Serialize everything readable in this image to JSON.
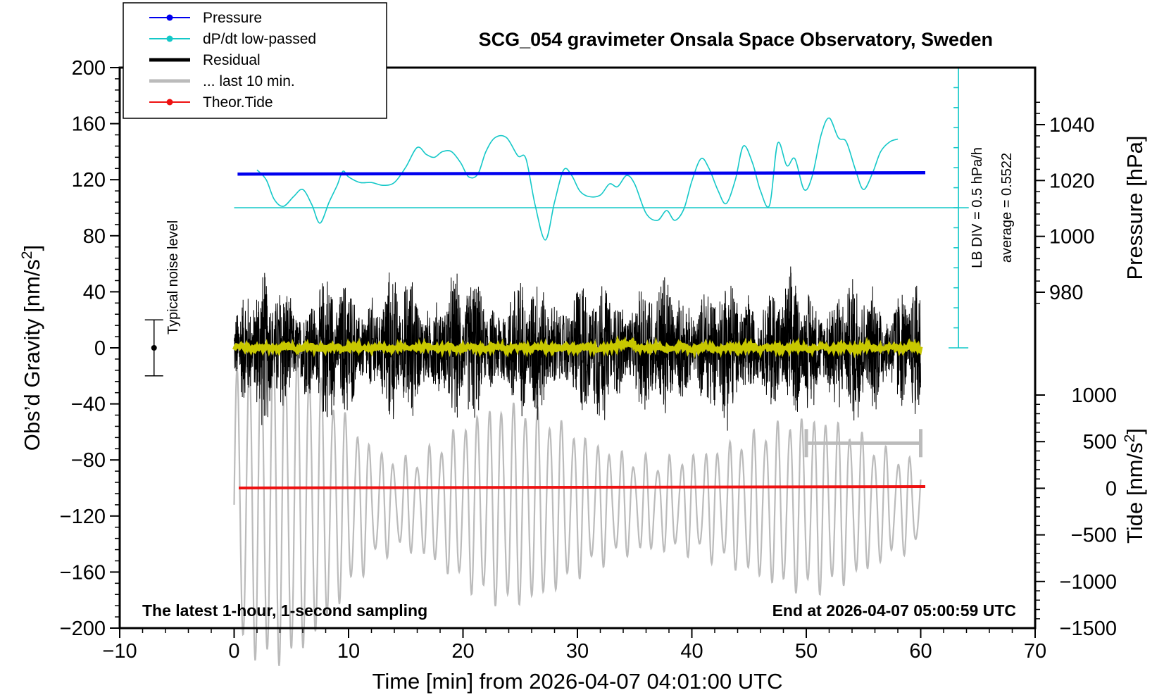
{
  "chart_data": {
    "type": "line",
    "title": "SCG_054 gravimeter Onsala Space Observatory, Sweden",
    "xlabel": "Time [min] from 2026-04-07 04:01:00 UTC",
    "ylabel": "Obs’d Gravity [nm/s",
    "ylabel_sup": "2",
    "ylabel_tail": "]",
    "y2label": "Pressure [hPa]",
    "y3label": "Tide [nm/s",
    "y3label_sup": "2",
    "y3label_tail": "]",
    "xlim": [
      -10,
      70
    ],
    "ylim": [
      -200,
      200
    ],
    "x_ticks": [
      "−10",
      "0",
      "10",
      "20",
      "30",
      "40",
      "50",
      "60",
      "70"
    ],
    "y_ticks": [
      "200",
      "160",
      "120",
      "80",
      "40",
      "0",
      "−40",
      "−80",
      "−120",
      "−160",
      "−200"
    ],
    "pressure_ticks": [
      "1040",
      "1020",
      "1000",
      "980"
    ],
    "pressure_tick_values": [
      1040,
      1020,
      1000,
      980
    ],
    "tide_ticks": [
      "1000",
      "500",
      "0",
      "−500",
      "−1000",
      "−1500"
    ],
    "tide_tick_values": [
      1000,
      500,
      0,
      -500,
      -1000,
      -1500
    ],
    "footer_left": "The latest 1-hour, 1-second sampling",
    "footer_right": "End at 2026-04-07 05:00:59 UTC",
    "noise_label": "Typical noise level",
    "noise_bar": {
      "x": -7,
      "center": 0,
      "low": -20,
      "high": 20
    },
    "lb_div_label": "LB DIV = 0.5 hPa/h",
    "average_label": "average = 0.5522",
    "legend": [
      {
        "label": "Pressure",
        "color": "#0000ee",
        "marker": true,
        "width": 2
      },
      {
        "label": "dP/dt low-passed",
        "color": "#14c8c8",
        "marker": true,
        "width": 2
      },
      {
        "label": "Residual",
        "color": "#000000",
        "marker": false,
        "width": 5
      },
      {
        "label": "... last 10 min.",
        "color": "#bbbbbb",
        "marker": false,
        "width": 5
      },
      {
        "label": "Theor.Tide",
        "color": "#ee1111",
        "marker": true,
        "width": 2
      }
    ],
    "series": [
      {
        "name": "Pressure",
        "color": "#0000ee",
        "x": [
          0,
          60
        ],
        "y": [
          124,
          125
        ]
      },
      {
        "name": "dP/dt low-passed",
        "color": "#14c8c8",
        "baseline_y": 100,
        "x": [
          2,
          2.8,
          3.5,
          4.3,
          5.2,
          6,
          6.8,
          7.5,
          8.3,
          9,
          9.5,
          10,
          11,
          12,
          13,
          14,
          15,
          16,
          16.8,
          17.5,
          18.2,
          19,
          19.8,
          20.5,
          21.3,
          22,
          22.8,
          23.8,
          24.8,
          25.5,
          26.3,
          27.2,
          28,
          28.8,
          29.5,
          30.2,
          31,
          32,
          32.8,
          33.5,
          34.3,
          35,
          36,
          37,
          37.8,
          38.5,
          39.3,
          40,
          40.8,
          41.5,
          42.3,
          43,
          43.8,
          44.5,
          45.3,
          46,
          46.8,
          47.5,
          48.3,
          49,
          49.8,
          50.5,
          51.3,
          52,
          52.8,
          53.5,
          54.3,
          55,
          55.8,
          56.5,
          57.3,
          58
        ],
        "y": [
          127,
          120,
          106,
          101,
          108,
          113,
          102,
          89,
          104,
          116,
          126,
          122,
          118,
          118,
          116,
          118,
          129,
          143,
          138,
          136,
          140,
          140,
          132,
          122,
          124,
          140,
          150,
          150,
          137,
          135,
          102,
          77,
          104,
          127,
          123,
          112,
          108,
          109,
          117,
          115,
          123,
          117,
          96,
          91,
          98,
          91,
          99,
          119,
          135,
          128,
          112,
          103,
          120,
          144,
          132,
          112,
          102,
          146,
          130,
          135,
          113,
          122,
          152,
          164,
          150,
          147,
          127,
          113,
          125,
          140,
          147,
          149
        ]
      },
      {
        "name": "Residual",
        "color": "#000000",
        "x": [
          0,
          60
        ],
        "envelope_nm_s2": [
          -96,
          97
        ],
        "mean": 0
      },
      {
        "name": "... last 10 min.",
        "color": "#bbbbbb",
        "x": [
          50,
          60
        ],
        "level": -68
      },
      {
        "name": "Theor.Tide",
        "color": "#ee1111",
        "x": [
          0,
          60
        ],
        "y": [
          -100,
          -99
        ]
      },
      {
        "name": "Tide (grey)",
        "color": "#bbbbbb",
        "x": [
          0,
          60
        ],
        "center": -112,
        "amplitude_nm_s2": [
          30,
          110
        ]
      }
    ]
  }
}
